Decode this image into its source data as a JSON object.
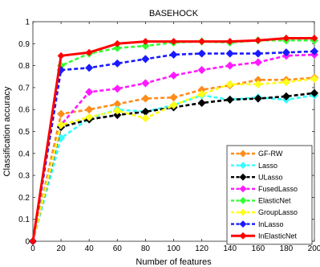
{
  "chart_data": {
    "type": "line",
    "title": "BASEHOCK",
    "xlabel": "Number of features",
    "ylabel": "Classification accuracy",
    "x": [
      0,
      20,
      40,
      60,
      80,
      100,
      120,
      140,
      160,
      180,
      200
    ],
    "xticks": [
      "0",
      "20",
      "40",
      "60",
      "80",
      "100",
      "120",
      "140",
      "160",
      "180",
      "200"
    ],
    "yticks": [
      "0",
      "0.1",
      "0.2",
      "0.3",
      "0.4",
      "0.5",
      "0.6",
      "0.7",
      "0.8",
      "0.9",
      "1"
    ],
    "xlim": [
      0,
      200
    ],
    "ylim": [
      0,
      1
    ],
    "grid": false,
    "legend_position": "bottom-right",
    "series": [
      {
        "name": "GF-RW",
        "color": "#ff8c1a",
        "marker": "diamond",
        "dashed": true,
        "values": [
          0.0,
          0.58,
          0.6,
          0.625,
          0.65,
          0.655,
          0.69,
          0.71,
          0.735,
          0.735,
          0.745
        ]
      },
      {
        "name": "Lasso",
        "color": "#33ffff",
        "marker": "diamond",
        "dashed": true,
        "values": [
          0.0,
          0.47,
          0.56,
          0.6,
          0.59,
          0.62,
          0.665,
          0.645,
          0.655,
          0.645,
          0.665
        ]
      },
      {
        "name": "ULasso",
        "color": "#000000",
        "marker": "diamond",
        "dashed": true,
        "values": [
          0.0,
          0.52,
          0.555,
          0.575,
          0.59,
          0.61,
          0.63,
          0.645,
          0.65,
          0.66,
          0.675
        ]
      },
      {
        "name": "FusedLasso",
        "color": "#ff1aff",
        "marker": "diamond",
        "dashed": true,
        "values": [
          0.0,
          0.53,
          0.68,
          0.695,
          0.72,
          0.755,
          0.78,
          0.8,
          0.815,
          0.845,
          0.85
        ]
      },
      {
        "name": "ElasticNet",
        "color": "#33ff33",
        "marker": "diamond",
        "dashed": true,
        "values": [
          0.0,
          0.8,
          0.855,
          0.88,
          0.89,
          0.905,
          0.91,
          0.905,
          0.915,
          0.915,
          0.915
        ]
      },
      {
        "name": "GroupLasso",
        "color": "#ffff1a",
        "marker": "diamond",
        "dashed": true,
        "values": [
          0.0,
          0.53,
          0.565,
          0.595,
          0.56,
          0.62,
          0.67,
          0.715,
          0.715,
          0.725,
          0.74
        ]
      },
      {
        "name": "InLasso",
        "color": "#1a1aff",
        "marker": "diamond",
        "dashed": true,
        "values": [
          0.0,
          0.78,
          0.79,
          0.81,
          0.83,
          0.85,
          0.855,
          0.855,
          0.855,
          0.86,
          0.865
        ]
      },
      {
        "name": "InElasticNet",
        "color": "#ff0000",
        "marker": "diamond",
        "dashed": false,
        "values": [
          0.0,
          0.845,
          0.86,
          0.9,
          0.91,
          0.91,
          0.91,
          0.91,
          0.915,
          0.925,
          0.925
        ]
      }
    ]
  }
}
